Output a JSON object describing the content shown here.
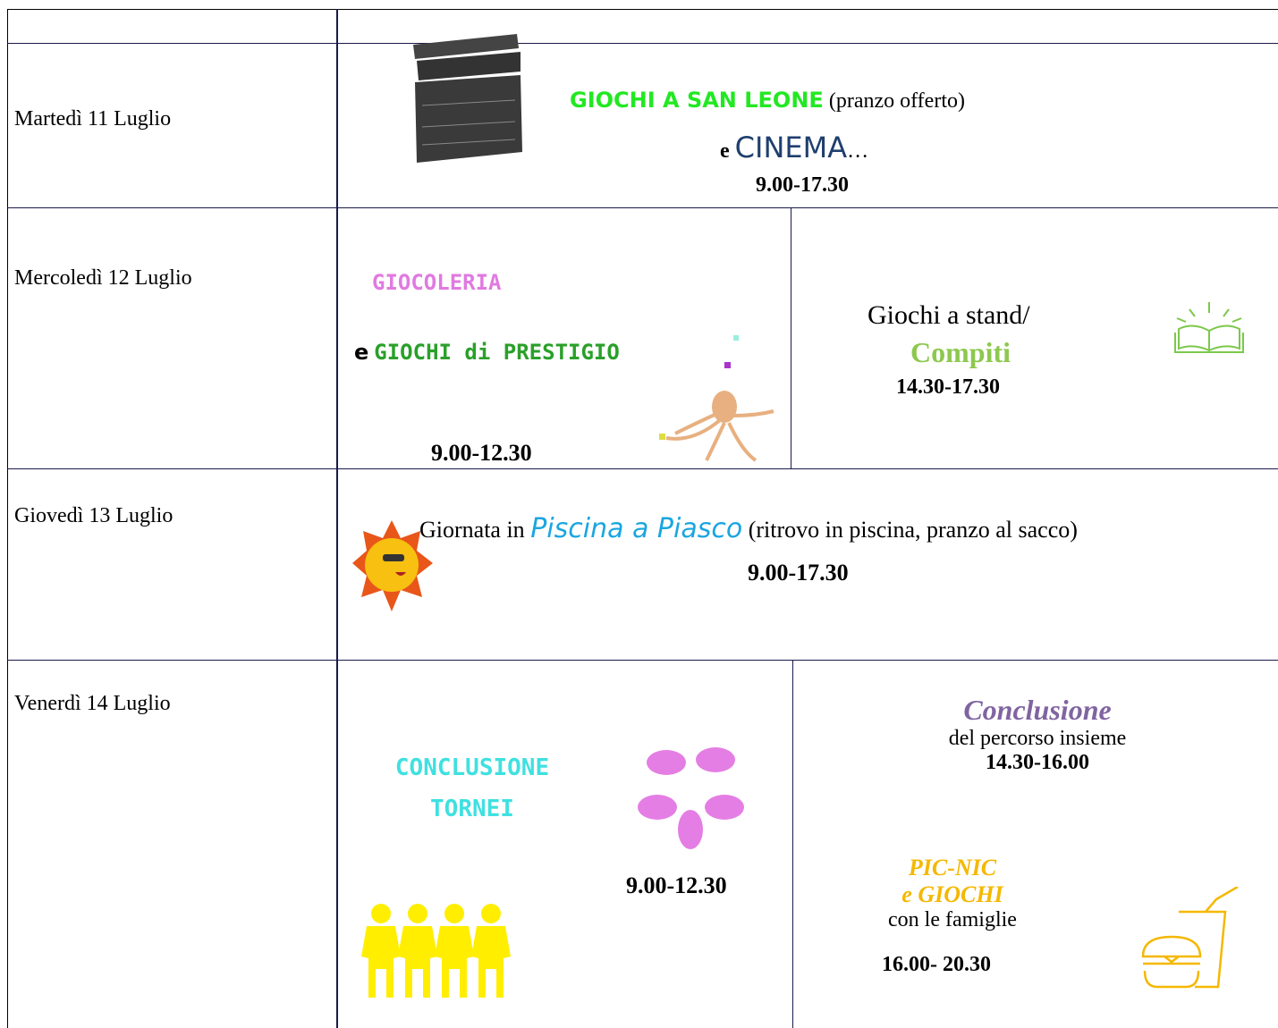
{
  "rows": [
    {
      "day": "Martedì 11 Luglio",
      "activity": {
        "title": "GIOCHI A SAN LEONE",
        "note": "(pranzo offerto)",
        "connector": "e",
        "title2": "CINEMA",
        "ellipsis": "…",
        "time": "9.00-17.30"
      }
    },
    {
      "day": "Mercoledì 12 Luglio",
      "morning": {
        "title": "GIOCOLERIA",
        "connector": "e",
        "title2": "GIOCHI di PRESTIGIO",
        "time": "9.00-12.30"
      },
      "afternoon": {
        "title": "Giochi a stand/",
        "title2": "Compiti",
        "time": "14.30-17.30"
      }
    },
    {
      "day": "Giovedì 13 Luglio",
      "activity": {
        "prefix": "Giornata in",
        "title": "Piscina a Piasco",
        "note": "(ritrovo in piscina, pranzo al sacco)",
        "time": "9.00-17.30"
      }
    },
    {
      "day": "Venerdì 14 Luglio",
      "morning": {
        "title": "CONCLUSIONE",
        "title2": "TORNEI",
        "time": "9.00-12.30"
      },
      "afternoon": {
        "title": "Conclusione",
        "text": "del percorso insieme",
        "time": "14.30-16.00",
        "title2": "PIC-NIC",
        "title3": "e GIOCHI",
        "text2": "con le famiglie",
        "time2": "16.00- 20.30"
      }
    }
  ]
}
